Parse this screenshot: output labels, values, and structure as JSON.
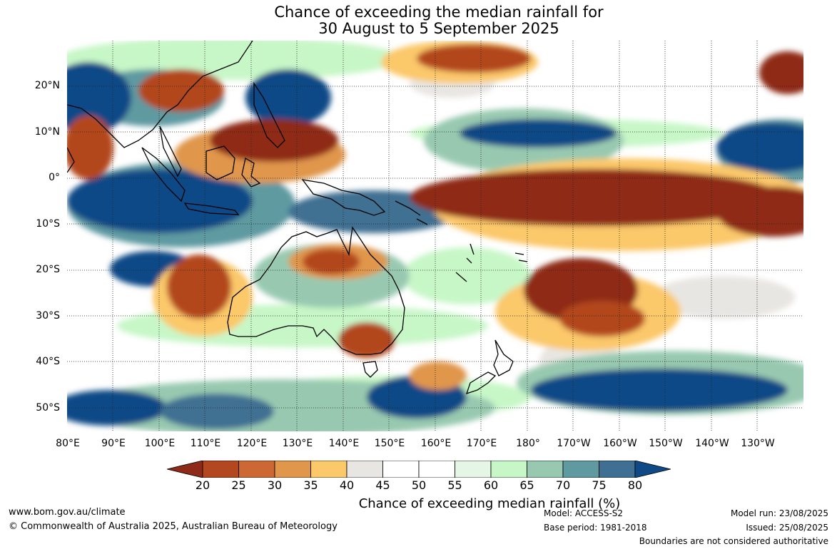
{
  "title": {
    "line1": "Chance of exceeding the median rainfall for",
    "line2": "30 August to 5 September 2025"
  },
  "map": {
    "lat_labels": [
      "20°N",
      "10°N",
      "0°",
      "10°S",
      "20°S",
      "30°S",
      "40°S",
      "50°S"
    ],
    "lon_labels": [
      "80°E",
      "90°E",
      "100°E",
      "110°E",
      "120°E",
      "130°E",
      "140°E",
      "150°E",
      "160°E",
      "170°E",
      "180°",
      "170°W",
      "160°W",
      "150°W",
      "140°W",
      "130°W"
    ]
  },
  "colorbar": {
    "ticks": [
      "20",
      "25",
      "30",
      "35",
      "40",
      "45",
      "50",
      "55",
      "60",
      "65",
      "70",
      "75",
      "80"
    ],
    "colors": [
      "#8e2a17",
      "#b3471f",
      "#cd6733",
      "#e0964b",
      "#fbc86a",
      "#e8e6e2",
      "#ffffff",
      "#ffffff",
      "#e6f6e6",
      "#c7f7c7",
      "#98c9b0",
      "#5f9aa1",
      "#3f6f92",
      "#0f4a86"
    ],
    "title": "Chance of exceeding median rainfall (%)"
  },
  "footer": {
    "url": "www.bom.gov.au/climate",
    "copyright": "© Commonwealth of Australia 2025, Australian Bureau of Meteorology",
    "model": "Model: ACCESS-S2",
    "base_period": "Base period: 1981-2018",
    "model_run": "Model run: 23/08/2025",
    "issued": "Issued: 25/08/2025",
    "disclaimer": "Boundaries are not considered authoritative"
  }
}
